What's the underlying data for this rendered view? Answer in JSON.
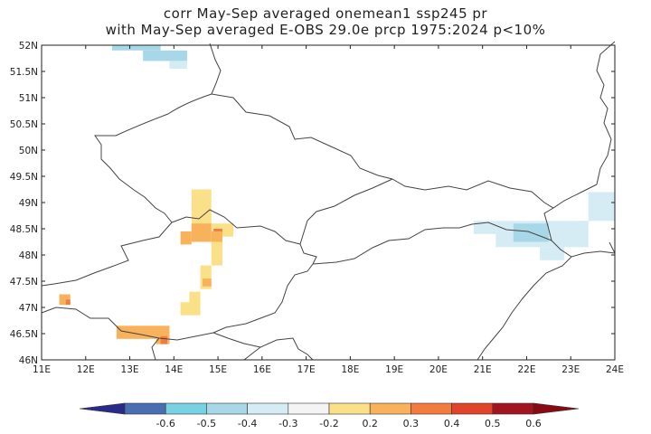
{
  "title": {
    "line1": "corr May-Sep averaged onemean1 ssp245 pr",
    "line2": "with May-Sep averaged E-OBS 29.0e prcp 1975:2024 p<10%"
  },
  "axes": {
    "lon_range": [
      11,
      24
    ],
    "lat_range": [
      46,
      52
    ],
    "x_labels": [
      "11E",
      "12E",
      "13E",
      "14E",
      "15E",
      "16E",
      "17E",
      "18E",
      "19E",
      "20E",
      "21E",
      "22E",
      "23E",
      "24E"
    ],
    "y_labels": [
      "52N",
      "51.5N",
      "51N",
      "50.5N",
      "50N",
      "49.5N",
      "49N",
      "48.5N",
      "48N",
      "47.5N",
      "47N",
      "46.5N",
      "46N"
    ]
  },
  "colorbar": {
    "ticks": [
      "-0.6",
      "-0.5",
      "-0.4",
      "-0.3",
      "-0.2",
      "0.2",
      "0.3",
      "0.4",
      "0.5",
      "0.6"
    ],
    "colors": [
      "#4a6fb0",
      "#78d2e2",
      "#a8d8e8",
      "#d6ecf4",
      "#f4f4f4",
      "#fbe08a",
      "#f8b25c",
      "#f27c3d",
      "#e0442a",
      "#a01520"
    ],
    "end_low": "#2a2a8a",
    "end_high": "#8a0a14"
  },
  "cells": [
    {
      "lon": 12.6,
      "lat": 51.9,
      "lon2": 13.7,
      "lat2": 52.0,
      "c": "#a8d8e8"
    },
    {
      "lon": 13.3,
      "lat": 51.7,
      "lon2": 14.3,
      "lat2": 51.9,
      "c": "#a8d8e8"
    },
    {
      "lon": 13.9,
      "lat": 51.55,
      "lon2": 14.3,
      "lat2": 51.7,
      "c": "#d6ecf4"
    },
    {
      "lon": 14.4,
      "lat": 48.75,
      "lon2": 14.85,
      "lat2": 49.25,
      "c": "#fbe08a"
    },
    {
      "lon": 14.4,
      "lat": 48.5,
      "lon2": 14.85,
      "lat2": 48.75,
      "c": "#fbe08a"
    },
    {
      "lon": 14.85,
      "lat": 48.35,
      "lon2": 15.35,
      "lat2": 48.6,
      "c": "#fbe08a"
    },
    {
      "lon": 14.15,
      "lat": 48.2,
      "lon2": 14.4,
      "lat2": 48.45,
      "c": "#f8b25c"
    },
    {
      "lon": 14.4,
      "lat": 48.25,
      "lon2": 14.85,
      "lat2": 48.6,
      "c": "#f8b25c"
    },
    {
      "lon": 14.85,
      "lat": 48.2,
      "lon2": 15.1,
      "lat2": 48.45,
      "c": "#f8b25c"
    },
    {
      "lon": 14.9,
      "lat": 48.45,
      "lon2": 15.1,
      "lat2": 48.5,
      "c": "#f27c3d"
    },
    {
      "lon": 14.85,
      "lat": 47.8,
      "lon2": 15.1,
      "lat2": 48.25,
      "c": "#fbe08a"
    },
    {
      "lon": 14.6,
      "lat": 47.35,
      "lon2": 14.85,
      "lat2": 47.8,
      "c": "#fbe08a"
    },
    {
      "lon": 14.65,
      "lat": 47.4,
      "lon2": 14.85,
      "lat2": 47.55,
      "c": "#f8b25c"
    },
    {
      "lon": 14.15,
      "lat": 46.85,
      "lon2": 14.6,
      "lat2": 47.1,
      "c": "#fbe08a"
    },
    {
      "lon": 14.35,
      "lat": 47.05,
      "lon2": 14.6,
      "lat2": 47.3,
      "c": "#fbe08a"
    },
    {
      "lon": 11.4,
      "lat": 47.05,
      "lon2": 11.65,
      "lat2": 47.25,
      "c": "#f8b25c"
    },
    {
      "lon": 11.55,
      "lat": 47.05,
      "lon2": 11.65,
      "lat2": 47.15,
      "c": "#f27c3d"
    },
    {
      "lon": 12.7,
      "lat": 46.4,
      "lon2": 13.9,
      "lat2": 46.65,
      "c": "#f8b25c"
    },
    {
      "lon": 13.6,
      "lat": 46.3,
      "lon2": 13.9,
      "lat2": 46.4,
      "c": "#f8b25c"
    },
    {
      "lon": 13.7,
      "lat": 46.3,
      "lon2": 13.85,
      "lat2": 46.45,
      "c": "#f27c3d"
    },
    {
      "lon": 20.8,
      "lat": 48.4,
      "lon2": 21.3,
      "lat2": 48.65,
      "c": "#d6ecf4"
    },
    {
      "lon": 21.3,
      "lat": 48.15,
      "lon2": 23.4,
      "lat2": 48.65,
      "c": "#d6ecf4"
    },
    {
      "lon": 22.3,
      "lat": 47.9,
      "lon2": 22.85,
      "lat2": 48.15,
      "c": "#d6ecf4"
    },
    {
      "lon": 21.7,
      "lat": 48.25,
      "lon2": 22.5,
      "lat2": 48.6,
      "c": "#a8d8e8"
    },
    {
      "lon": 23.4,
      "lat": 48.65,
      "lon2": 24.0,
      "lat2": 49.2,
      "c": "#d6ecf4"
    },
    {
      "lon": 23.1,
      "lat": 48.5,
      "lon2": 23.4,
      "lat2": 48.65,
      "c": "#d6ecf4"
    }
  ]
}
